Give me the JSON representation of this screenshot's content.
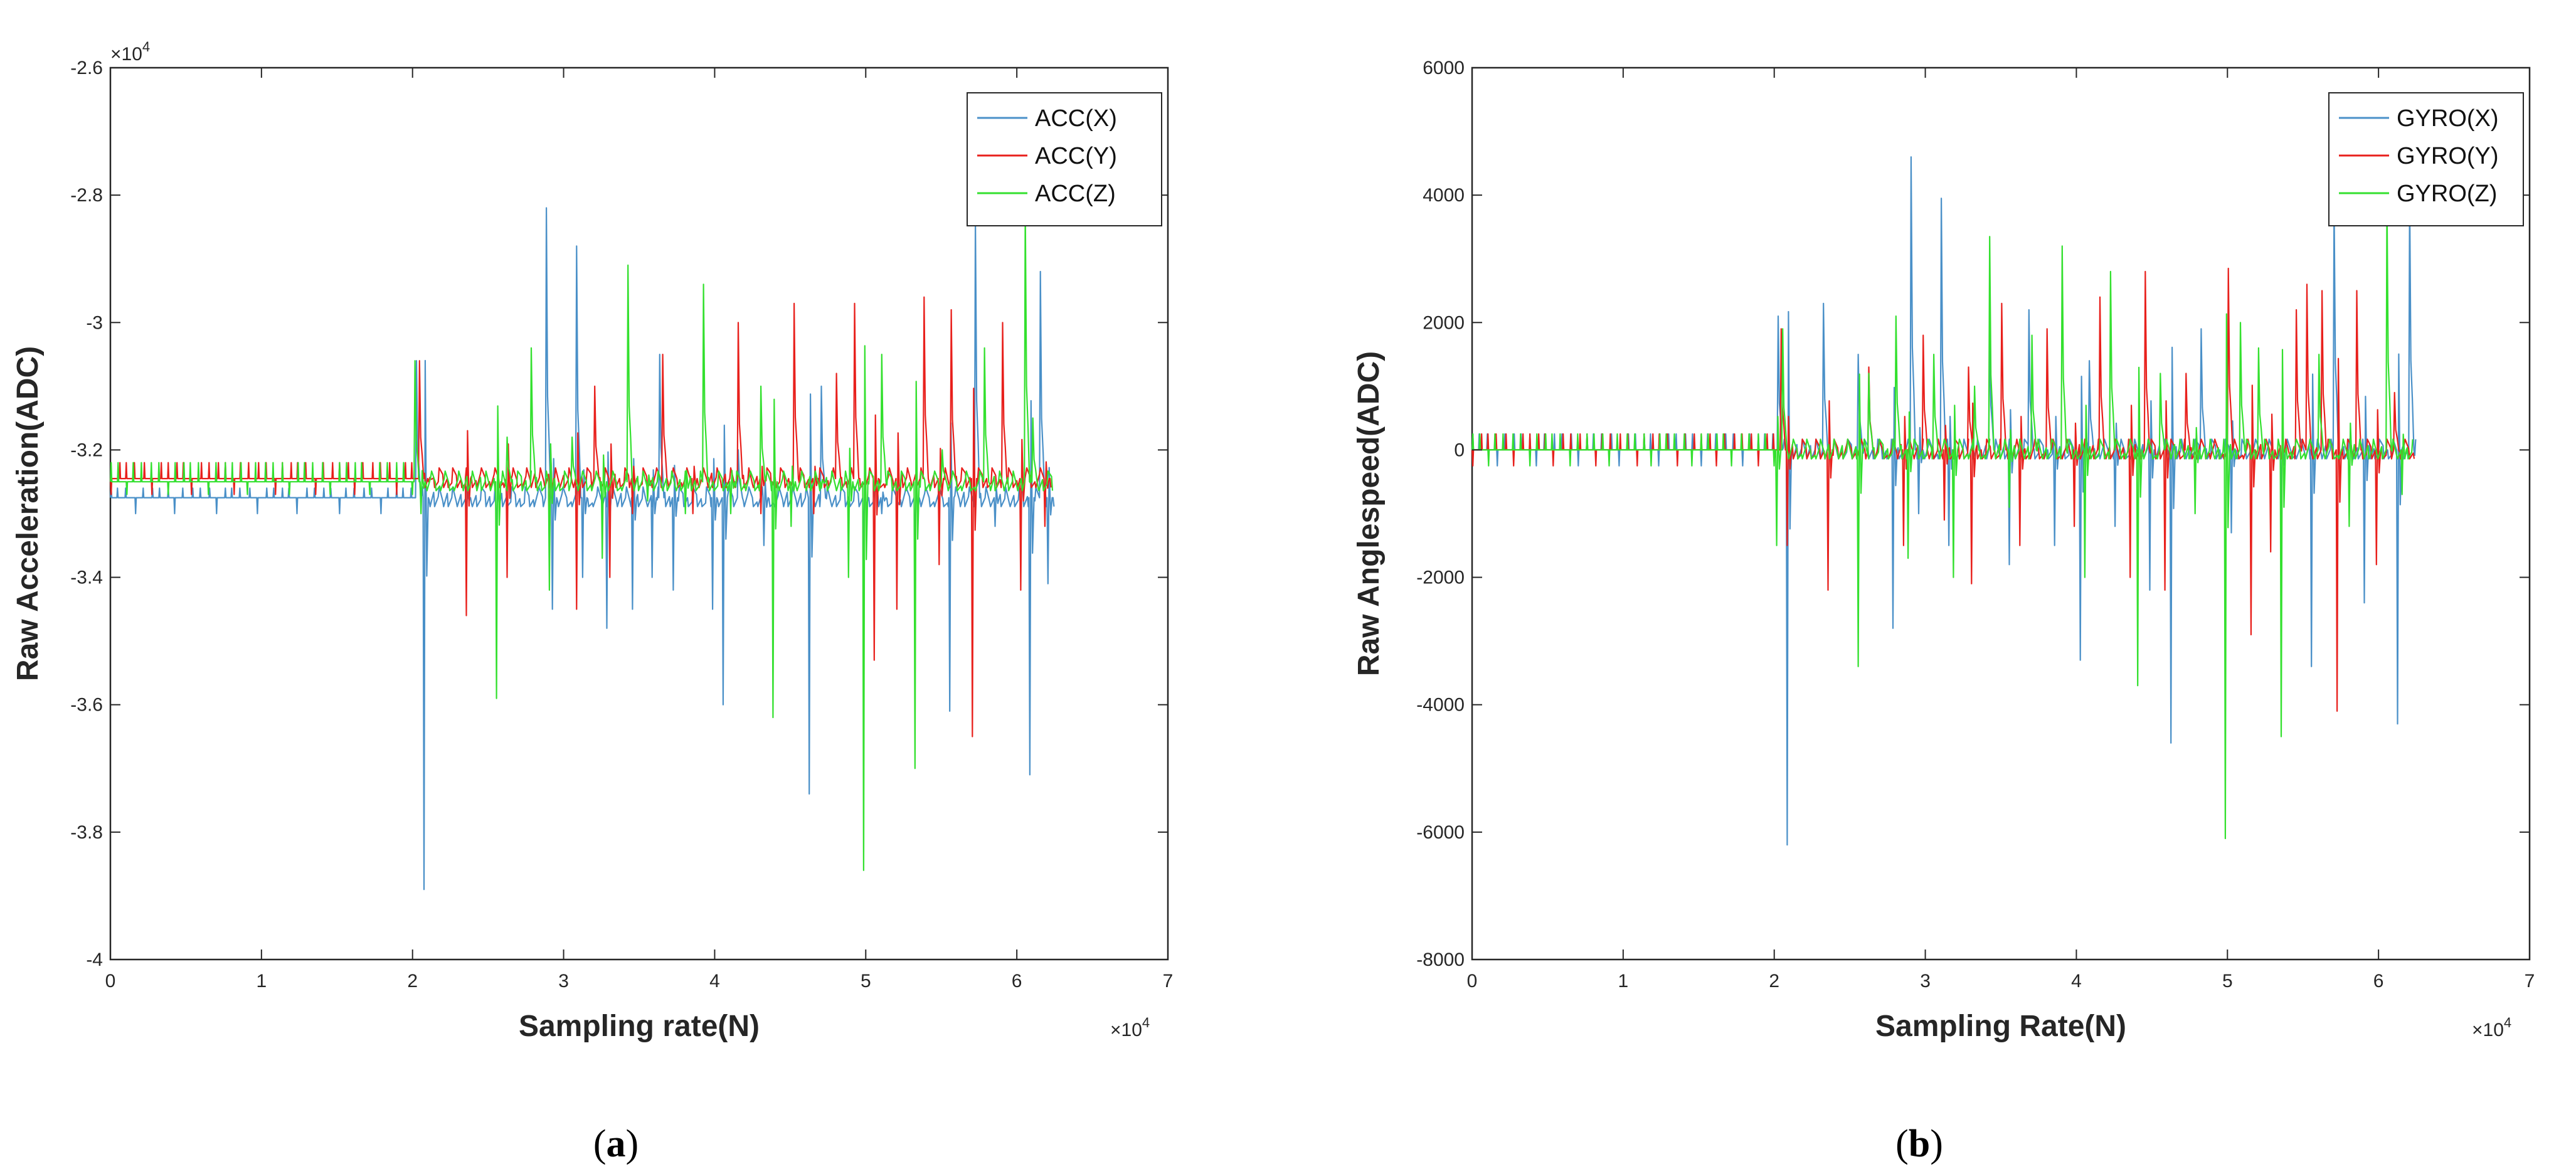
{
  "chart_data": [
    {
      "panel": "(a)",
      "panel_label_open": "(",
      "panel_label_letter": "a",
      "panel_label_close": ")",
      "type": "line",
      "xlabel": "Sampling rate(N)",
      "ylabel": "Raw Acceleration(ADC)",
      "x_multiplier_base": "×10",
      "x_multiplier_exp": "4",
      "y_multiplier_base": "×10",
      "y_multiplier_exp": "4",
      "xlim": [
        0,
        7
      ],
      "ylim": [
        -4.0,
        -2.6
      ],
      "xticks": [
        0,
        1,
        2,
        3,
        4,
        5,
        6,
        7
      ],
      "xtick_labels": [
        "0",
        "1",
        "2",
        "3",
        "4",
        "5",
        "6",
        "7"
      ],
      "yticks": [
        -4.0,
        -3.8,
        -3.6,
        -3.4,
        -3.2,
        -3.0,
        -2.8,
        -2.6
      ],
      "ytick_labels": [
        "-4",
        "-3.8",
        "-3.6",
        "-3.4",
        "-3.2",
        "-3",
        "-2.8",
        "-2.6"
      ],
      "legend_position": "top-right",
      "x_end": 6.25,
      "active_start": 2.0,
      "series": [
        {
          "name": "ACC(X)",
          "color": "#4a90c8",
          "base": -3.275,
          "noise_hi": -3.26,
          "noise_lo": -3.3,
          "spikes": [
            [
              2.02,
              -3.06
            ],
            [
              2.07,
              -3.89
            ],
            [
              2.35,
              -3.3
            ],
            [
              2.55,
              -3.35
            ],
            [
              2.88,
              -2.82
            ],
            [
              2.92,
              -3.45
            ],
            [
              3.08,
              -2.88
            ],
            [
              3.12,
              -3.4
            ],
            [
              3.28,
              -3.48
            ],
            [
              3.45,
              -3.45
            ],
            [
              3.58,
              -3.4
            ],
            [
              3.63,
              -3.05
            ],
            [
              3.72,
              -3.42
            ],
            [
              3.98,
              -3.45
            ],
            [
              4.05,
              -3.6
            ],
            [
              4.15,
              -3.2
            ],
            [
              4.32,
              -3.35
            ],
            [
              4.62,
              -3.74
            ],
            [
              4.7,
              -3.1
            ],
            [
              4.98,
              -3.38
            ],
            [
              5.1,
              -3.3
            ],
            [
              5.32,
              -3.4
            ],
            [
              5.55,
              -3.61
            ],
            [
              5.72,
              -2.84
            ],
            [
              5.85,
              -3.32
            ],
            [
              6.08,
              -3.71
            ],
            [
              6.15,
              -2.92
            ],
            [
              6.2,
              -3.41
            ]
          ]
        },
        {
          "name": "ACC(Y)",
          "color": "#e8201c",
          "base": -3.245,
          "noise_hi": -3.22,
          "noise_lo": -3.27,
          "spikes": [
            [
              2.04,
              -3.06
            ],
            [
              2.1,
              -3.25
            ],
            [
              2.35,
              -3.46
            ],
            [
              2.62,
              -3.4
            ],
            [
              2.9,
              -3.36
            ],
            [
              3.08,
              -3.45
            ],
            [
              3.2,
              -3.1
            ],
            [
              3.3,
              -3.4
            ],
            [
              3.45,
              -3.3
            ],
            [
              3.65,
              -3.05
            ],
            [
              3.85,
              -3.3
            ],
            [
              4.15,
              -3.0
            ],
            [
              4.3,
              -3.3
            ],
            [
              4.52,
              -2.97
            ],
            [
              4.65,
              -3.3
            ],
            [
              4.8,
              -3.08
            ],
            [
              4.92,
              -2.97
            ],
            [
              5.05,
              -3.53
            ],
            [
              5.2,
              -3.45
            ],
            [
              5.38,
              -2.96
            ],
            [
              5.48,
              -3.38
            ],
            [
              5.56,
              -2.98
            ],
            [
              5.7,
              -3.65
            ],
            [
              5.9,
              -3.0
            ],
            [
              6.02,
              -3.42
            ],
            [
              6.18,
              -3.32
            ]
          ]
        },
        {
          "name": "ACC(Z)",
          "color": "#33e02e",
          "base": -3.25,
          "noise_hi": -3.22,
          "noise_lo": -3.27,
          "spikes": [
            [
              2.01,
              -3.06
            ],
            [
              2.05,
              -3.3
            ],
            [
              2.55,
              -3.59
            ],
            [
              2.62,
              -3.18
            ],
            [
              2.78,
              -3.04
            ],
            [
              2.9,
              -3.42
            ],
            [
              3.05,
              -3.18
            ],
            [
              3.25,
              -3.37
            ],
            [
              3.42,
              -2.91
            ],
            [
              3.55,
              -3.28
            ],
            [
              3.8,
              -3.3
            ],
            [
              3.92,
              -2.94
            ],
            [
              4.1,
              -3.3
            ],
            [
              4.3,
              -3.1
            ],
            [
              4.38,
              -3.62
            ],
            [
              4.5,
              -3.32
            ],
            [
              4.7,
              -3.26
            ],
            [
              4.88,
              -3.4
            ],
            [
              4.98,
              -3.86
            ],
            [
              5.1,
              -3.05
            ],
            [
              5.32,
              -3.7
            ],
            [
              5.5,
              -3.2
            ],
            [
              5.78,
              -3.04
            ],
            [
              6.05,
              -2.82
            ],
            [
              6.1,
              -3.15
            ]
          ]
        }
      ]
    },
    {
      "panel": "(b)",
      "panel_label_open": "(",
      "panel_label_letter": "b",
      "panel_label_close": ")",
      "type": "line",
      "xlabel": "Sampling Rate(N)",
      "ylabel": "Raw Anglespeed(ADC)",
      "x_multiplier_base": "×10",
      "x_multiplier_exp": "4",
      "xlim": [
        0,
        7
      ],
      "ylim": [
        -8000,
        6000
      ],
      "xticks": [
        0,
        1,
        2,
        3,
        4,
        5,
        6,
        7
      ],
      "xtick_labels": [
        "0",
        "1",
        "2",
        "3",
        "4",
        "5",
        "6",
        "7"
      ],
      "yticks": [
        -8000,
        -6000,
        -4000,
        -2000,
        0,
        2000,
        4000,
        6000
      ],
      "ytick_labels": [
        "-8000",
        "-6000",
        "-4000",
        "-2000",
        "0",
        "2000",
        "4000",
        "6000"
      ],
      "legend_position": "top-right",
      "x_end": 6.25,
      "active_start": 2.0,
      "series": [
        {
          "name": "GYRO(X)",
          "color": "#4a90c8",
          "base": 0,
          "noise_hi": 250,
          "noise_lo": -250,
          "spikes": [
            [
              2.02,
              2100
            ],
            [
              2.08,
              -6200
            ],
            [
              2.32,
              2300
            ],
            [
              2.55,
              1500
            ],
            [
              2.78,
              -2800
            ],
            [
              2.9,
              4600
            ],
            [
              2.95,
              -1000
            ],
            [
              3.1,
              3950
            ],
            [
              3.15,
              -1500
            ],
            [
              3.42,
              2000
            ],
            [
              3.55,
              -1800
            ],
            [
              3.68,
              2200
            ],
            [
              3.85,
              -1500
            ],
            [
              4.02,
              -3300
            ],
            [
              4.08,
              1400
            ],
            [
              4.25,
              -1200
            ],
            [
              4.48,
              -2200
            ],
            [
              4.62,
              -4600
            ],
            [
              4.82,
              1900
            ],
            [
              5.02,
              -1300
            ],
            [
              5.35,
              -1200
            ],
            [
              5.55,
              -3400
            ],
            [
              5.7,
              3900
            ],
            [
              5.9,
              -2400
            ],
            [
              6.12,
              -4300
            ],
            [
              6.2,
              4000
            ]
          ]
        },
        {
          "name": "GYRO(Y)",
          "color": "#e8201c",
          "base": 0,
          "noise_hi": 250,
          "noise_lo": -250,
          "spikes": [
            [
              2.04,
              1900
            ],
            [
              2.08,
              -1500
            ],
            [
              2.35,
              -2200
            ],
            [
              2.62,
              1300
            ],
            [
              2.85,
              -1500
            ],
            [
              2.98,
              1800
            ],
            [
              3.12,
              -1100
            ],
            [
              3.28,
              1300
            ],
            [
              3.3,
              -2100
            ],
            [
              3.5,
              2300
            ],
            [
              3.62,
              -1500
            ],
            [
              3.8,
              1900
            ],
            [
              3.98,
              -1200
            ],
            [
              4.15,
              2400
            ],
            [
              4.35,
              -2000
            ],
            [
              4.45,
              2800
            ],
            [
              4.58,
              -2200
            ],
            [
              4.72,
              1200
            ],
            [
              5.0,
              2850
            ],
            [
              5.15,
              -2900
            ],
            [
              5.28,
              -1600
            ],
            [
              5.45,
              2200
            ],
            [
              5.52,
              2600
            ],
            [
              5.62,
              2500
            ],
            [
              5.72,
              -4100
            ],
            [
              5.85,
              2500
            ],
            [
              5.98,
              -1800
            ],
            [
              6.1,
              900
            ]
          ]
        },
        {
          "name": "GYRO(Z)",
          "color": "#33e02e",
          "base": 0,
          "noise_hi": 250,
          "noise_lo": -250,
          "spikes": [
            [
              2.01,
              -1500
            ],
            [
              2.05,
              1900
            ],
            [
              2.55,
              -3400
            ],
            [
              2.62,
              1200
            ],
            [
              2.8,
              2100
            ],
            [
              2.88,
              -1700
            ],
            [
              3.05,
              1500
            ],
            [
              3.18,
              -2000
            ],
            [
              3.32,
              1000
            ],
            [
              3.42,
              3350
            ],
            [
              3.55,
              -900
            ],
            [
              3.7,
              1800
            ],
            [
              3.9,
              3200
            ],
            [
              4.05,
              -2000
            ],
            [
              4.22,
              2800
            ],
            [
              4.4,
              -3700
            ],
            [
              4.55,
              1200
            ],
            [
              4.78,
              -1000
            ],
            [
              4.98,
              -6100
            ],
            [
              5.08,
              2000
            ],
            [
              5.2,
              1600
            ],
            [
              5.35,
              -4500
            ],
            [
              5.6,
              1500
            ],
            [
              5.8,
              -1200
            ],
            [
              6.05,
              3950
            ],
            [
              6.15,
              -700
            ]
          ]
        }
      ]
    }
  ]
}
